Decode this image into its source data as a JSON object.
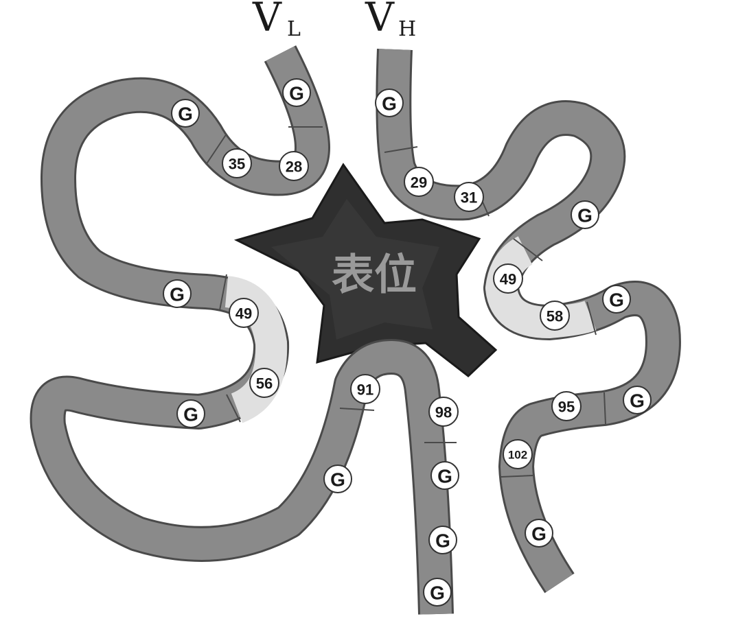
{
  "labels": {
    "vl_main": "V",
    "vl_sub": "L",
    "vh_main": "V",
    "vh_sub": "H",
    "epitope": "表位"
  },
  "colors": {
    "framework": "#8a8a8a",
    "cdr": "#e0e0e0",
    "outline": "#4a4a4a",
    "epitope": "#2f2f2f",
    "marker_fill": "#ffffff"
  },
  "residues": {
    "vl_g1": "G",
    "vl_g2": "G",
    "vl_35": "35",
    "vl_28": "28",
    "vl_g3": "G",
    "vl_49": "49",
    "vl_56": "56",
    "vl_g4": "G",
    "vl_91": "91",
    "vl_98": "98",
    "vl_g5": "G",
    "vh_g1": "G",
    "vh_29": "29",
    "vh_31": "31",
    "vh_g2": "G",
    "vh_49": "49",
    "vh_58": "58",
    "vh_g3": "G",
    "vh_95": "95",
    "vh_g4": "G",
    "vh_102": "102",
    "vh_g5": "G",
    "c_g1": "G",
    "c_g2": "G",
    "c_g3": "G"
  }
}
